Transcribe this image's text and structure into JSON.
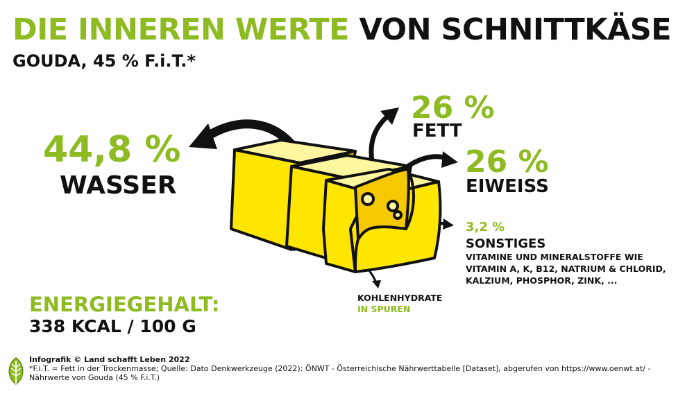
{
  "title": {
    "part1": "DIE INNEREN WERTE",
    "part2": "VON SCHNITTKÄSE"
  },
  "subtitle": "GOUDA, 45 % F.i.T.*",
  "components": {
    "wasser": {
      "percent": "44,8 %",
      "label": "WASSER"
    },
    "fett": {
      "percent": "26 %",
      "label": "FETT"
    },
    "eiweiss": {
      "percent": "26 %",
      "label": "EIWEISS"
    },
    "sonstiges": {
      "percent": "3,2 %",
      "label": "SONSTIGES",
      "details": [
        "VITAMINE UND MINERALSTOFFE WIE",
        "VITAMIN A, K, B12, NATRIUM & CHLORID,",
        "KALZIUM, PHOSPHOR, ZINK, ..."
      ]
    },
    "kohlenhydrate": {
      "label": "KOHLENHYDRATE",
      "note": "IN SPUREN"
    }
  },
  "energy": {
    "label": "ENERGIEGEHALT:",
    "value": "338 KCAL / 100 G"
  },
  "footer": {
    "credit": "Infografik © Land schafft Leben 2022",
    "line1": "*F.i.T. = Fett in der Trockenmasse; Quelle: Dato Denkwerkzeuge (2022): ÖNWT - Österreichische Nährwerttabelle [Dataset], abgerufen von https://www.oenwt.at/ -",
    "line2": "Nährwerte von Gouda (45 % F.i.T.)"
  },
  "colors": {
    "accent": "#8dbb21",
    "cheese": "#ffe600",
    "cheese_shade": "#f5c800",
    "outline": "#111111"
  },
  "icons": [
    "leaf-logo-icon",
    "cheese-block-illustration",
    "arrow-icon"
  ]
}
